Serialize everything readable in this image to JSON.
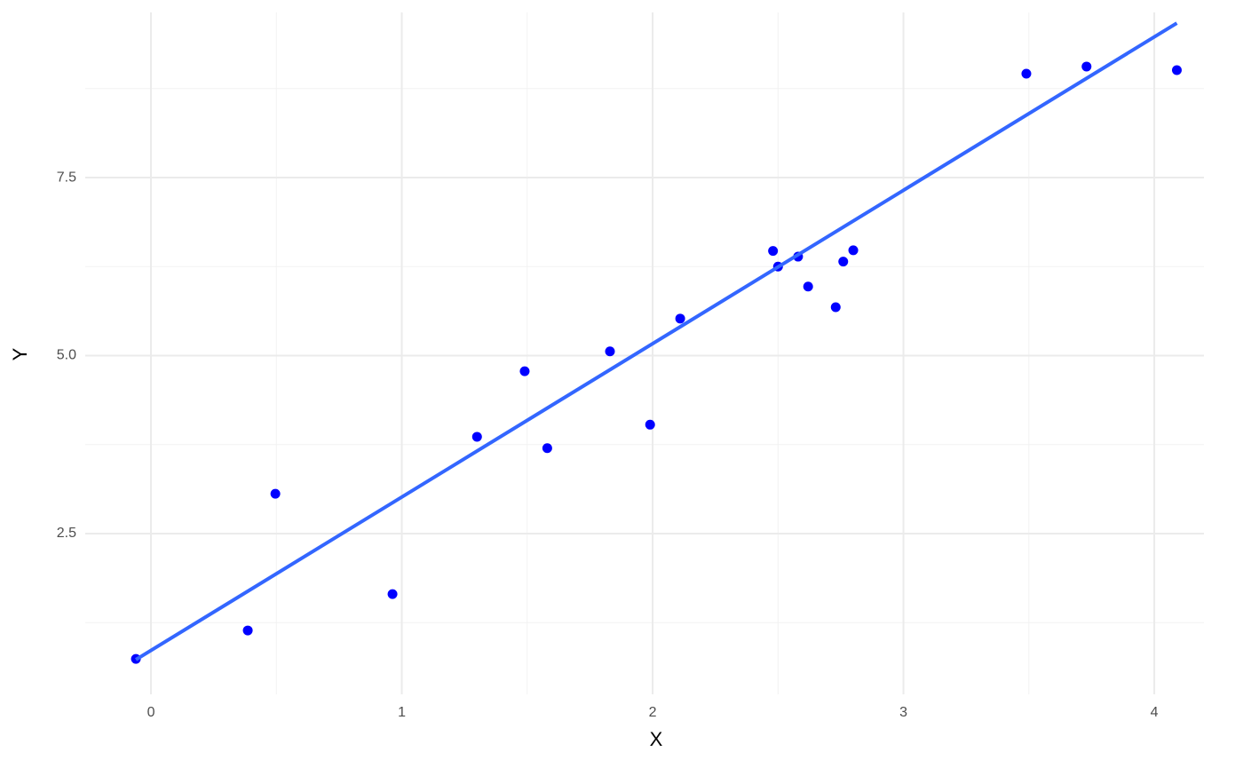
{
  "chart_data": {
    "type": "scatter",
    "x_label": "X",
    "y_label": "Y",
    "x": [
      -0.06,
      0.386,
      0.496,
      0.963,
      1.3,
      1.49,
      1.58,
      1.83,
      1.99,
      2.11,
      2.48,
      2.5,
      2.58,
      2.62,
      2.73,
      2.76,
      2.8,
      3.49,
      3.73,
      4.09
    ],
    "values": [
      0.74,
      1.14,
      3.06,
      1.65,
      3.86,
      4.78,
      3.7,
      5.06,
      4.03,
      5.52,
      6.47,
      6.25,
      6.39,
      5.97,
      5.68,
      6.32,
      6.48,
      8.96,
      9.06,
      9.01
    ],
    "color": "#0000ff",
    "fit_line": {
      "x": [
        -0.06,
        4.09
      ],
      "y": [
        0.73,
        9.67
      ],
      "color": "#3366ff"
    },
    "xlim": [
      -0.262,
      4.198
    ],
    "ylim": [
      0.243,
      9.82
    ],
    "xticks": [
      0,
      1,
      2,
      3,
      4
    ],
    "yticks": [
      2.5,
      {
        "value": 5,
        "label": "5.0"
      },
      7.5
    ],
    "x_minor_ticks": [
      0.5,
      1.5,
      2.5,
      3.5
    ],
    "y_minor_ticks": [
      1.25,
      3.75,
      6.25,
      8.75
    ],
    "grid": true
  }
}
